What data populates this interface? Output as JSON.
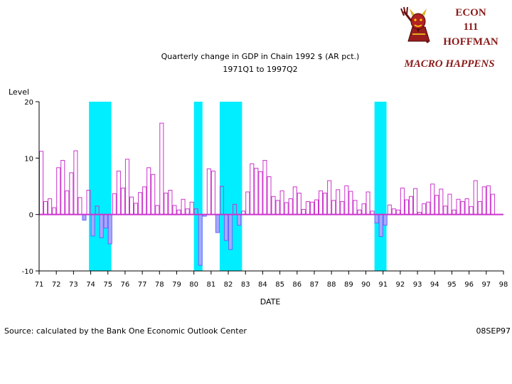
{
  "header": {
    "course_line1": "ECON",
    "course_line2": "111",
    "course_line3": "HOFFMAN",
    "tagline": "MACRO HAPPENS",
    "brand_color": "#8b1a1a",
    "logo_icon": "sun-devil-mascot-icon"
  },
  "chart_data": {
    "type": "bar",
    "title": "Quarterly change in GDP in Chain 1992 $ (AR pct.)",
    "subtitle": "1971Q1 to 1997Q2",
    "ylabel": "Level",
    "xlabel": "DATE",
    "ylim": [
      -10,
      20
    ],
    "yticks": [
      -10,
      0,
      10,
      20
    ],
    "xlim": [
      71,
      98
    ],
    "xticks": [
      "71",
      "72",
      "73",
      "74",
      "75",
      "76",
      "77",
      "78",
      "79",
      "80",
      "81",
      "82",
      "83",
      "84",
      "85",
      "86",
      "87",
      "88",
      "89",
      "90",
      "91",
      "92",
      "93",
      "94",
      "95",
      "96",
      "97",
      "98"
    ],
    "recessions": [
      [
        73.9,
        75.2
      ],
      [
        80.0,
        80.5
      ],
      [
        81.5,
        82.8
      ],
      [
        90.5,
        91.2
      ]
    ],
    "x": [
      71.0,
      71.25,
      71.5,
      71.75,
      72.0,
      72.25,
      72.5,
      72.75,
      73.0,
      73.25,
      73.5,
      73.75,
      74.0,
      74.25,
      74.5,
      74.75,
      75.0,
      75.25,
      75.5,
      75.75,
      76.0,
      76.25,
      76.5,
      76.75,
      77.0,
      77.25,
      77.5,
      77.75,
      78.0,
      78.25,
      78.5,
      78.75,
      79.0,
      79.25,
      79.5,
      79.75,
      80.0,
      80.25,
      80.5,
      80.75,
      81.0,
      81.25,
      81.5,
      81.75,
      82.0,
      82.25,
      82.5,
      82.75,
      83.0,
      83.25,
      83.5,
      83.75,
      84.0,
      84.25,
      84.5,
      84.75,
      85.0,
      85.25,
      85.5,
      85.75,
      86.0,
      86.25,
      86.5,
      86.75,
      87.0,
      87.25,
      87.5,
      87.75,
      88.0,
      88.25,
      88.5,
      88.75,
      89.0,
      89.25,
      89.5,
      89.75,
      90.0,
      90.25,
      90.5,
      90.75,
      91.0,
      91.25,
      91.5,
      91.75,
      92.0,
      92.25,
      92.5,
      92.75,
      93.0,
      93.25,
      93.5,
      93.75,
      94.0,
      94.25,
      94.5,
      94.75,
      95.0,
      95.25,
      95.5,
      95.75,
      96.0,
      96.25,
      96.5,
      96.75,
      97.0,
      97.25
    ],
    "values": [
      11.2,
      2.3,
      2.8,
      1.2,
      8.3,
      9.6,
      4.2,
      7.4,
      11.3,
      3.0,
      -1.0,
      4.3,
      -3.8,
      1.5,
      -4.1,
      -2.4,
      -5.2,
      3.7,
      7.7,
      4.7,
      9.8,
      3.1,
      2.0,
      3.9,
      4.9,
      8.3,
      7.1,
      1.6,
      16.2,
      3.8,
      4.3,
      1.6,
      0.8,
      2.7,
      1.0,
      2.2,
      1.0,
      -9.0,
      -0.3,
      8.1,
      7.7,
      -3.2,
      5.0,
      -4.6,
      -6.2,
      1.8,
      -1.9,
      0.6,
      4.0,
      9.0,
      8.2,
      7.6,
      9.6,
      6.7,
      3.2,
      2.5,
      4.2,
      2.1,
      2.8,
      4.9,
      3.8,
      0.9,
      2.3,
      2.2,
      2.6,
      4.2,
      3.8,
      6.0,
      2.5,
      4.4,
      2.3,
      5.1,
      4.1,
      2.5,
      0.8,
      1.9,
      4.0,
      0.6,
      -1.5,
      -3.9,
      -1.9,
      1.7,
      1.0,
      0.8,
      4.7,
      2.6,
      3.2,
      4.6,
      0.4,
      1.9,
      2.2,
      5.4,
      3.4,
      4.5,
      1.5,
      3.6,
      0.8,
      2.7,
      2.3,
      2.8,
      1.4,
      6.0,
      2.3,
      4.9,
      5.1,
      3.6
    ],
    "colors": {
      "bar_positive": "#cc33cc",
      "bar_negative": "#6666ff",
      "recession_band": "#00eeff",
      "zero_line": "#cc33cc",
      "axis": "#000000"
    }
  },
  "footer": {
    "source": "Source: calculated by the Bank One Economic Outlook Center",
    "date_stamp": "08SEP97"
  }
}
